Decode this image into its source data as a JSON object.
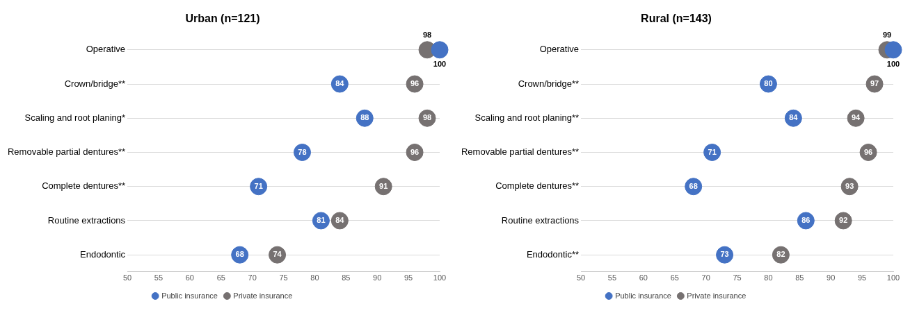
{
  "chart_data": [
    {
      "type": "scatter",
      "orientation": "horizontal",
      "title": "Urban (n=121)",
      "categories": [
        "Operative",
        "Crown/bridge**",
        "Scaling and root planing*",
        "Removable partial dentures**",
        "Complete dentures**",
        "Routine extractions",
        "Endodontic"
      ],
      "series": [
        {
          "name": "Public insurance",
          "color": "#4472c4",
          "values": [
            100,
            84,
            88,
            78,
            71,
            81,
            68
          ]
        },
        {
          "name": "Private insurance",
          "color": "#767171",
          "values": [
            98,
            96,
            98,
            96,
            91,
            84,
            74
          ]
        }
      ],
      "xlim": [
        50,
        100
      ],
      "xticks": [
        50,
        55,
        60,
        65,
        70,
        75,
        80,
        85,
        90,
        95,
        100
      ],
      "grid": "y",
      "legend": "bottom",
      "marker": "circle",
      "data_labels": true
    },
    {
      "type": "scatter",
      "orientation": "horizontal",
      "title": "Rural (n=143)",
      "categories": [
        "Operative",
        "Crown/bridge**",
        "Scaling and root planing**",
        "Removable partial dentures**",
        "Complete dentures**",
        "Routine extractions",
        "Endodontic**"
      ],
      "series": [
        {
          "name": "Public insurance",
          "color": "#4472c4",
          "values": [
            100,
            80,
            84,
            71,
            68,
            86,
            73
          ]
        },
        {
          "name": "Private insurance",
          "color": "#767171",
          "values": [
            99,
            97,
            94,
            96,
            93,
            92,
            82
          ]
        }
      ],
      "xlim": [
        50,
        100
      ],
      "xticks": [
        50,
        55,
        60,
        65,
        70,
        75,
        80,
        85,
        90,
        95,
        100
      ],
      "grid": "y",
      "legend": "bottom",
      "marker": "circle",
      "data_labels": true
    }
  ]
}
